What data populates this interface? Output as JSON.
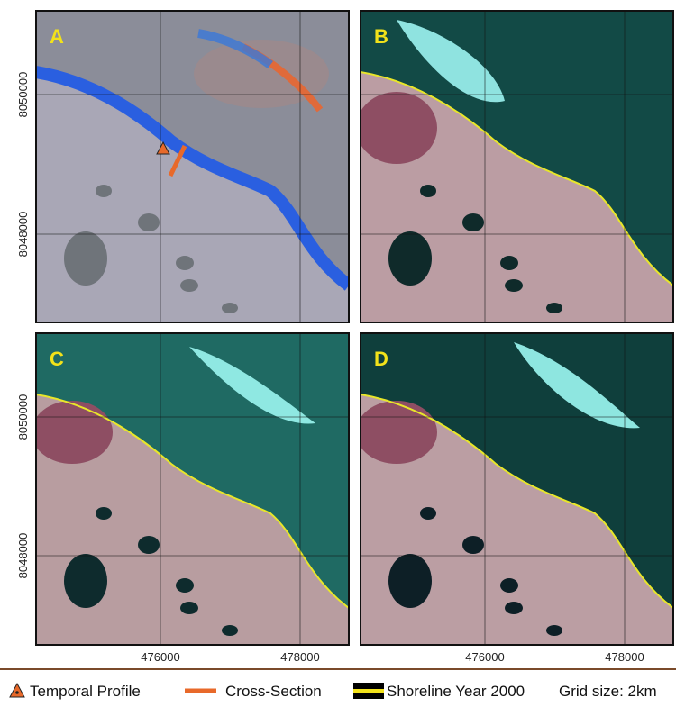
{
  "panels": [
    {
      "label": "A"
    },
    {
      "label": "B"
    },
    {
      "label": "C"
    },
    {
      "label": "D"
    }
  ],
  "y_ticks": [
    "8050000",
    "8048000"
  ],
  "x_ticks": [
    "476000",
    "478000"
  ],
  "legend": [
    {
      "label": "Temporal Profile"
    },
    {
      "label": "Cross-Section"
    },
    {
      "label": "Shoreline Year 2000"
    }
  ],
  "grid_note": "Grid size: 2km"
}
